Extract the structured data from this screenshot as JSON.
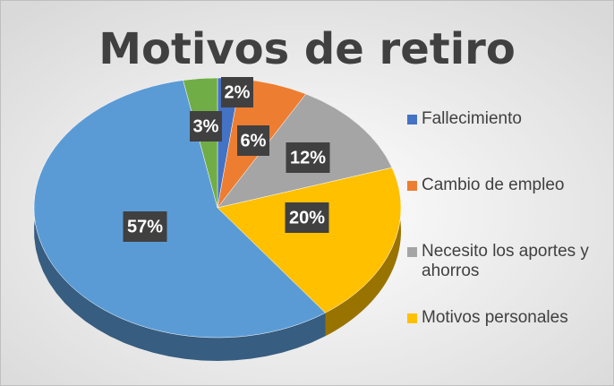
{
  "chart_data": {
    "type": "pie",
    "title": "Motivos de retiro",
    "categories": [
      "Fallecimiento",
      "Cambio de empleo",
      "Necesito los aportes y ahorros",
      "Motivos personales",
      null,
      null
    ],
    "values": [
      2,
      6,
      12,
      20,
      57,
      3
    ],
    "value_labels": [
      "2%",
      "6%",
      "12%",
      "20%",
      "57%",
      "3%"
    ],
    "colors": [
      "#4472c4",
      "#ed7d31",
      "#a5a5a5",
      "#ffc000",
      "#5b9bd5",
      "#70ad47"
    ],
    "legend": "right"
  }
}
